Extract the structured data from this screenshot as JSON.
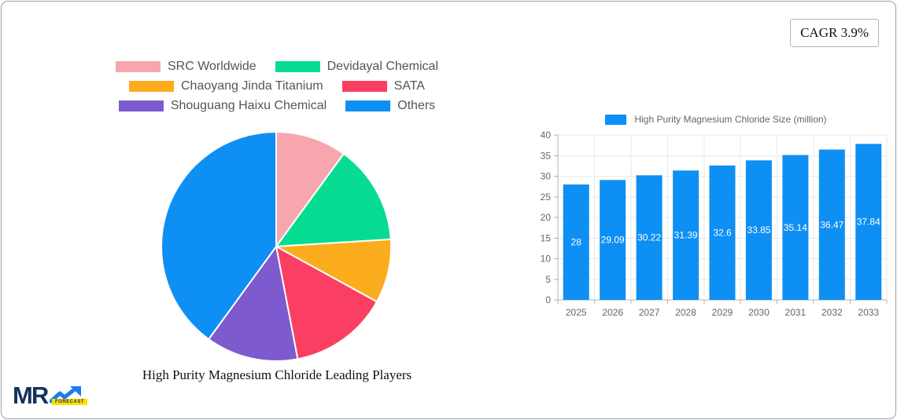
{
  "card": {
    "cagr_label": "CAGR 3.9%"
  },
  "logo": {
    "mr": "MR",
    "forecast": "FORECAST"
  },
  "chart_data": [
    {
      "type": "pie",
      "title": "High Purity Magnesium Chloride Leading Players",
      "labels": [
        "SRC Worldwide",
        "Devidayal Chemical",
        "Chaoyang Jinda Titanium",
        "SATA",
        "Shouguang Haixu Chemical",
        "Others"
      ],
      "values": [
        10,
        14,
        9,
        14,
        13,
        40
      ],
      "colors": [
        "#f7a6ad",
        "#06dc91",
        "#fbad1e",
        "#fb3f62",
        "#7d5ace",
        "#0e8ff3"
      ],
      "legend_position": "top",
      "legend_rows": [
        [
          0,
          1
        ],
        [
          2,
          3
        ],
        [
          4,
          5
        ]
      ],
      "start_angle_deg": 0,
      "direction": "clockwise",
      "slice_border_color": "#ffffff"
    },
    {
      "type": "bar",
      "legend_label": "High Purity Magnesium Chloride Size (million)",
      "categories": [
        "2025",
        "2026",
        "2027",
        "2028",
        "2029",
        "2030",
        "2031",
        "2032",
        "2033"
      ],
      "values": [
        28,
        29.09,
        30.22,
        31.39,
        32.6,
        33.85,
        35.14,
        36.47,
        37.84
      ],
      "value_label_texts": [
        "28",
        "29.09",
        "30.22",
        "31.39",
        "32.6",
        "33.85",
        "35.14",
        "36.47",
        "37.84"
      ],
      "bar_color": "#0e8ff3",
      "value_label_color": "#ffffff",
      "axis_text_color": "#666666",
      "grid_color": "#e8e8e8",
      "axis_line_color": "#b0b0b0",
      "ylim": [
        0,
        40
      ],
      "ytick_step": 5,
      "grid": true,
      "value_labels": "inside-middle",
      "legend_position": "top"
    }
  ]
}
